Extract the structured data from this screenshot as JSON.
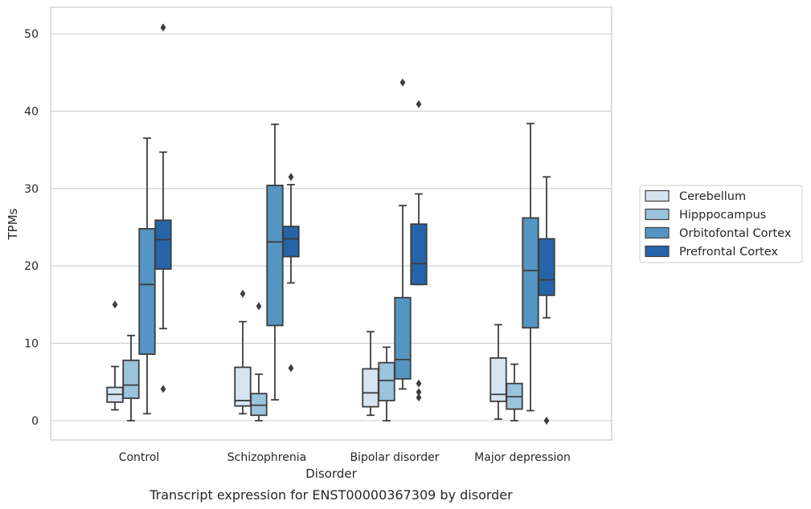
{
  "chart_data": {
    "type": "box",
    "xlabel": "Disorder",
    "ylabel": "TPMs",
    "caption": "Transcript expression for ENST00000367309 by disorder",
    "ylim": [
      -2.4,
      53.4
    ],
    "yticks": [
      0,
      10,
      20,
      30,
      40,
      50
    ],
    "grid": "horizontal",
    "legend_placement": "right",
    "categories": [
      "Control",
      "Schizophrenia",
      "Bipolar disorder",
      "Major depression"
    ],
    "series": [
      {
        "name": "Cerebellum",
        "color": "#d6e3f0",
        "boxes": [
          {
            "category": "Control",
            "whisker_low": 1.4,
            "q1": 2.4,
            "median": 3.4,
            "q3": 4.3,
            "whisker_high": 7.0,
            "outliers": [
              15.0
            ]
          },
          {
            "category": "Schizophrenia",
            "whisker_low": 0.9,
            "q1": 1.9,
            "median": 2.6,
            "q3": 6.9,
            "whisker_high": 12.8,
            "outliers": [
              16.4
            ]
          },
          {
            "category": "Bipolar disorder",
            "whisker_low": 0.7,
            "q1": 1.8,
            "median": 3.6,
            "q3": 6.7,
            "whisker_high": 11.5,
            "outliers": []
          },
          {
            "category": "Major depression",
            "whisker_low": 0.2,
            "q1": 2.5,
            "median": 3.4,
            "q3": 8.1,
            "whisker_high": 12.4,
            "outliers": []
          }
        ]
      },
      {
        "name": "Hipppocampus",
        "color": "#9ac3dc",
        "boxes": [
          {
            "category": "Control",
            "whisker_low": 0.0,
            "q1": 2.9,
            "median": 4.6,
            "q3": 7.8,
            "whisker_high": 11.0,
            "outliers": []
          },
          {
            "category": "Schizophrenia",
            "whisker_low": 0.0,
            "q1": 0.7,
            "median": 2.0,
            "q3": 3.5,
            "whisker_high": 6.0,
            "outliers": [
              14.8
            ]
          },
          {
            "category": "Bipolar disorder",
            "whisker_low": 0.0,
            "q1": 2.6,
            "median": 5.2,
            "q3": 7.5,
            "whisker_high": 9.5,
            "outliers": []
          },
          {
            "category": "Major depression",
            "whisker_low": 0.0,
            "q1": 1.5,
            "median": 3.1,
            "q3": 4.8,
            "whisker_high": 7.3,
            "outliers": []
          }
        ]
      },
      {
        "name": "Orbitofontal Cortex",
        "color": "#5495c3",
        "boxes": [
          {
            "category": "Control",
            "whisker_low": 0.9,
            "q1": 8.6,
            "median": 17.6,
            "q3": 24.8,
            "whisker_high": 36.5,
            "outliers": []
          },
          {
            "category": "Schizophrenia",
            "whisker_low": 2.7,
            "q1": 12.3,
            "median": 23.1,
            "q3": 30.4,
            "whisker_high": 38.3,
            "outliers": []
          },
          {
            "category": "Bipolar disorder",
            "whisker_low": 4.1,
            "q1": 5.4,
            "median": 7.9,
            "q3": 15.9,
            "whisker_high": 27.8,
            "outliers": [
              43.7
            ]
          },
          {
            "category": "Major depression",
            "whisker_low": 1.3,
            "q1": 12.0,
            "median": 19.4,
            "q3": 26.2,
            "whisker_high": 38.4,
            "outliers": []
          }
        ]
      },
      {
        "name": "Prefrontal Cortex",
        "color": "#2564a8",
        "boxes": [
          {
            "category": "Control",
            "whisker_low": 11.9,
            "q1": 19.6,
            "median": 23.4,
            "q3": 25.9,
            "whisker_high": 34.7,
            "outliers": [
              50.8,
              4.1
            ]
          },
          {
            "category": "Schizophrenia",
            "whisker_low": 17.8,
            "q1": 21.2,
            "median": 23.5,
            "q3": 25.1,
            "whisker_high": 30.5,
            "outliers": [
              31.5,
              6.8
            ]
          },
          {
            "category": "Bipolar disorder",
            "whisker_low": 17.6,
            "q1": 17.6,
            "median": 20.3,
            "q3": 25.4,
            "whisker_high": 29.3,
            "outliers": [
              40.9,
              4.8,
              3.7,
              3.0
            ]
          },
          {
            "category": "Major depression",
            "whisker_low": 13.3,
            "q1": 16.2,
            "median": 18.2,
            "q3": 23.5,
            "whisker_high": 31.5,
            "outliers": [
              0.0
            ]
          }
        ]
      }
    ]
  }
}
